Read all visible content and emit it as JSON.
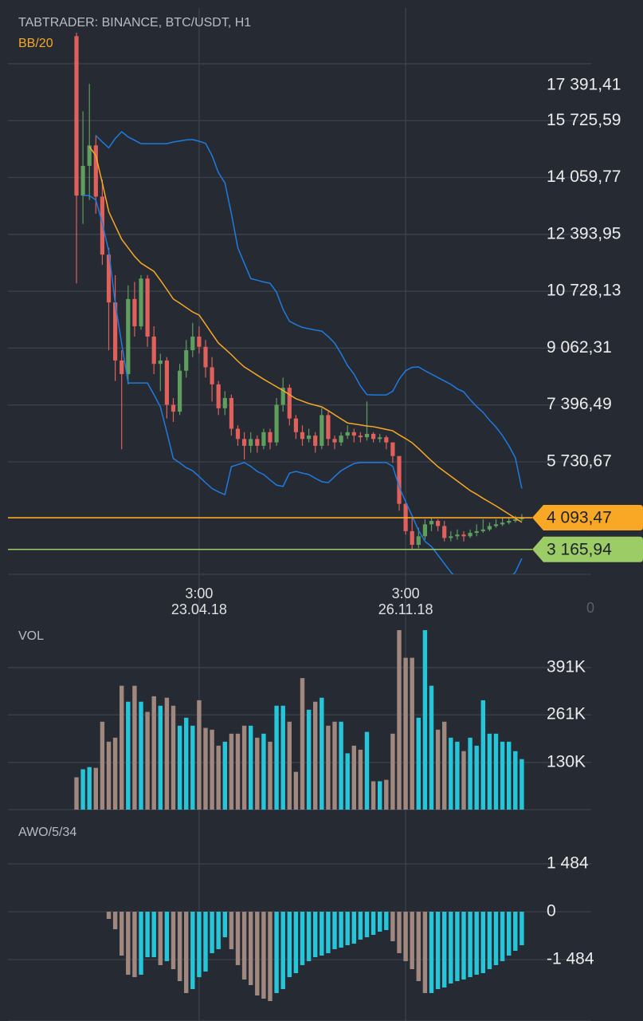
{
  "ui": {
    "time_axis_corner": "0"
  },
  "chart_data": [
    {
      "type": "candlestick",
      "title": "TABTRADER: BINANCE, BTC/USDT, H1",
      "categories": [
        null,
        null,
        null,
        null,
        null,
        null,
        null,
        null,
        null,
        null,
        null,
        null,
        null,
        null,
        null,
        null,
        null,
        null,
        null,
        [
          "3:00",
          "23.04.18"
        ],
        null,
        null,
        null,
        null,
        null,
        null,
        null,
        null,
        null,
        null,
        null,
        null,
        null,
        null,
        null,
        null,
        null,
        null,
        null,
        null,
        null,
        null,
        null,
        null,
        null,
        null,
        null,
        null,
        null,
        null,
        null,
        [
          "3:00",
          "26.11.18"
        ],
        null,
        null,
        null,
        null,
        null,
        null,
        null,
        null,
        null,
        null,
        null,
        null,
        null,
        null,
        null,
        null,
        null,
        null
      ],
      "open": [
        18200,
        13530,
        14400,
        15000,
        13500,
        11800,
        10400,
        8700,
        8300,
        10500,
        9700,
        11100,
        9400,
        8600,
        8700,
        7400,
        7200,
        8400,
        9000,
        9400,
        9100,
        8500,
        8000,
        7300,
        7600,
        6700,
        6400,
        6200,
        6400,
        6200,
        6600,
        6300,
        7400,
        7900,
        7000,
        6600,
        6400,
        6500,
        6200,
        7100,
        6400,
        6300,
        6500,
        6600,
        6500,
        6450,
        6550,
        6400,
        6450,
        6300,
        5900,
        4500,
        3700,
        3300,
        3550,
        3900,
        4000,
        3850,
        3500,
        3550,
        3600,
        3550,
        3650,
        3700,
        3750,
        3850,
        3900,
        3950,
        4000,
        4050
      ],
      "high": [
        18300,
        16000,
        16800,
        15300,
        14000,
        12000,
        11200,
        9000,
        10900,
        11000,
        11200,
        11200,
        9700,
        8900,
        8800,
        7600,
        8600,
        9300,
        9800,
        9700,
        9300,
        8800,
        8100,
        7800,
        7700,
        6800,
        6600,
        6600,
        6500,
        6700,
        6700,
        7600,
        8200,
        8000,
        7100,
        6800,
        6700,
        6600,
        7300,
        7200,
        6500,
        6600,
        6800,
        6700,
        6600,
        7500,
        6600,
        6550,
        6500,
        6300,
        5900,
        4600,
        4100,
        3800,
        4050,
        4100,
        4050,
        4000,
        3700,
        3750,
        3700,
        3750,
        3900,
        4050,
        3950,
        4050,
        4100,
        4100,
        4150,
        4200
      ],
      "low": [
        10960,
        12700,
        13400,
        13000,
        11500,
        9000,
        8100,
        6100,
        8000,
        9400,
        9600,
        9100,
        8300,
        7800,
        7000,
        6900,
        7100,
        8200,
        8800,
        8900,
        8200,
        7500,
        7100,
        7100,
        6500,
        6200,
        5800,
        6000,
        6000,
        6100,
        6100,
        6200,
        7200,
        6800,
        6400,
        6200,
        6300,
        6000,
        6100,
        6200,
        6100,
        6200,
        6400,
        6300,
        6300,
        6350,
        6300,
        6300,
        6100,
        5700,
        4300,
        3600,
        3150,
        3200,
        3450,
        3700,
        3700,
        3400,
        3400,
        3450,
        3400,
        3500,
        3550,
        3650,
        3700,
        3800,
        3850,
        3900,
        3950,
        4000
      ],
      "close": [
        13530,
        14400,
        15000,
        13500,
        11800,
        10400,
        8700,
        8300,
        10500,
        9700,
        11100,
        9400,
        8600,
        8700,
        7400,
        7200,
        8400,
        9000,
        9400,
        9100,
        8500,
        8000,
        7300,
        7600,
        6700,
        6400,
        6200,
        6400,
        6200,
        6600,
        6300,
        7400,
        7900,
        7000,
        6600,
        6400,
        6500,
        6200,
        7100,
        6400,
        6300,
        6500,
        6600,
        6500,
        6450,
        6550,
        6400,
        6450,
        6300,
        5900,
        4500,
        3700,
        3300,
        3550,
        3900,
        4000,
        3850,
        3500,
        3550,
        3600,
        3550,
        3650,
        3700,
        3750,
        3850,
        3900,
        3950,
        4000,
        4050,
        4093.47
      ],
      "up_color": "#5e9e5e",
      "down_color": "#e0605c",
      "indicator": {
        "name": "BB/20",
        "color": "#f9a825",
        "band_color": "#1f7be0",
        "middle": [
          null,
          null,
          14960,
          14700,
          13900,
          13060,
          12650,
          12250,
          12000,
          11750,
          11550,
          11430,
          11310,
          11050,
          10780,
          10500,
          10380,
          10250,
          10120,
          10030,
          9760,
          9480,
          9210,
          9040,
          8870,
          8680,
          8510,
          8390,
          8270,
          8150,
          8040,
          7930,
          7820,
          7700,
          7580,
          7510,
          7440,
          7390,
          7340,
          7230,
          7110,
          6990,
          6870,
          6840,
          6810,
          6780,
          6760,
          6720,
          6680,
          6640,
          6520,
          6410,
          6290,
          6120,
          5940,
          5760,
          5590,
          5450,
          5310,
          5170,
          5030,
          4890,
          4780,
          4660,
          4550,
          4440,
          4320,
          4200,
          4080,
          3960
        ],
        "upper": [
          null,
          null,
          null,
          15290,
          15100,
          14930,
          15200,
          15400,
          15250,
          15150,
          15050,
          15050,
          15050,
          15050,
          15050,
          15100,
          15130,
          15160,
          15170,
          15120,
          15060,
          14700,
          14200,
          13900,
          13000,
          12000,
          11550,
          11100,
          11050,
          11000,
          10960,
          10700,
          10200,
          9850,
          9750,
          9670,
          9630,
          9590,
          9560,
          9400,
          9210,
          8900,
          8550,
          8300,
          7950,
          7700,
          7690,
          7690,
          7690,
          7800,
          8150,
          8400,
          8500,
          8510,
          8400,
          8300,
          8200,
          8100,
          8000,
          7870,
          7780,
          7550,
          7350,
          7180,
          6950,
          6750,
          6500,
          6200,
          5850,
          4950
        ],
        "lower": [
          null,
          13530,
          13530,
          13400,
          12720,
          11900,
          10380,
          9200,
          8040,
          8040,
          8040,
          8040,
          7700,
          7340,
          6600,
          5830,
          5700,
          5560,
          5470,
          5300,
          5120,
          4950,
          4850,
          4770,
          5590,
          5650,
          5710,
          5600,
          5450,
          5360,
          5200,
          5050,
          5010,
          5400,
          5450,
          5400,
          5360,
          5250,
          5150,
          5120,
          5300,
          5470,
          5580,
          5680,
          5710,
          5710,
          5710,
          5710,
          5710,
          5600,
          5000,
          4560,
          4150,
          3720,
          3400,
          3250,
          3000,
          2750,
          2500,
          2300,
          2150,
          2050,
          2000,
          1980,
          2000,
          2050,
          2150,
          2300,
          2500,
          2900
        ]
      },
      "price_lines": [
        {
          "value": 4093.47,
          "label": "4 093,47",
          "color": "#f9a825"
        },
        {
          "value": 3165.94,
          "label": "3 165,94",
          "color": "#9ccc65"
        }
      ],
      "ylim": [
        2436,
        19025
      ],
      "yticks": [
        {
          "value": 17391.41,
          "label": "17 391,41"
        },
        {
          "value": 15725.59,
          "label": "15 725,59"
        },
        {
          "value": 14059.77,
          "label": "14 059,77"
        },
        {
          "value": 12393.95,
          "label": "12 393,95"
        },
        {
          "value": 10728.13,
          "label": "10 728,13"
        },
        {
          "value": 9062.31,
          "label": "9 062,31"
        },
        {
          "value": 7396.49,
          "label": "7 396,49"
        },
        {
          "value": 5730.67,
          "label": "5 730,67"
        }
      ],
      "grid": true
    },
    {
      "type": "bar",
      "title": "VOL",
      "values": [
        89000,
        111000,
        117000,
        115000,
        242000,
        187000,
        198000,
        341000,
        297000,
        341000,
        297000,
        269000,
        312000,
        286000,
        308000,
        286000,
        231000,
        253000,
        231000,
        301000,
        225000,
        220000,
        176000,
        187000,
        209000,
        209000,
        231000,
        231000,
        198000,
        209000,
        187000,
        286000,
        286000,
        242000,
        104000,
        362000,
        275000,
        297000,
        308000,
        231000,
        242000,
        242000,
        155000,
        176000,
        165000,
        214000,
        78000,
        78000,
        82000,
        209000,
        494000,
        418000,
        418000,
        253000,
        494000,
        341000,
        220000,
        242000,
        198000,
        187000,
        161000,
        198000,
        176000,
        301000,
        209000,
        209000,
        187000,
        187000,
        161000,
        139000
      ],
      "up_color": "#26c6da",
      "down_color": "#a1887f",
      "ylim": [
        0,
        516000
      ],
      "yticks": [
        {
          "value": 391000,
          "label": "391K"
        },
        {
          "value": 261000,
          "label": "261K"
        },
        {
          "value": 130000,
          "label": "130K"
        }
      ],
      "grid": true
    },
    {
      "type": "bar",
      "title": "AWO/5/34",
      "values": [
        null,
        null,
        null,
        null,
        null,
        -223,
        -544,
        -1360,
        -1954,
        -2028,
        -1954,
        -1410,
        -1410,
        -1657,
        -1533,
        -1781,
        -2152,
        -2523,
        -2400,
        -2028,
        -1855,
        -1286,
        -1162,
        -791,
        -1162,
        -1657,
        -2102,
        -2276,
        -2597,
        -2696,
        -2770,
        -2523,
        -2400,
        -2028,
        -1905,
        -1657,
        -1533,
        -1410,
        -1360,
        -1286,
        -1162,
        -1113,
        -1039,
        -989,
        -866,
        -791,
        -717,
        -618,
        -569,
        -915,
        -1286,
        -1533,
        -1781,
        -2152,
        -2523,
        -2523,
        -2400,
        -2350,
        -2226,
        -2152,
        -2102,
        -2028,
        -1954,
        -1905,
        -1781,
        -1657,
        -1533,
        -1360,
        -1212,
        -1039
      ],
      "up_color": "#26c6da",
      "down_color": "#a1887f",
      "ylim": [
        -3389,
        2795
      ],
      "yticks": [
        {
          "value": 1484,
          "label": "1 484"
        },
        0,
        {
          "value": -1484,
          "label": "-1 484"
        }
      ],
      "grid": true
    }
  ]
}
